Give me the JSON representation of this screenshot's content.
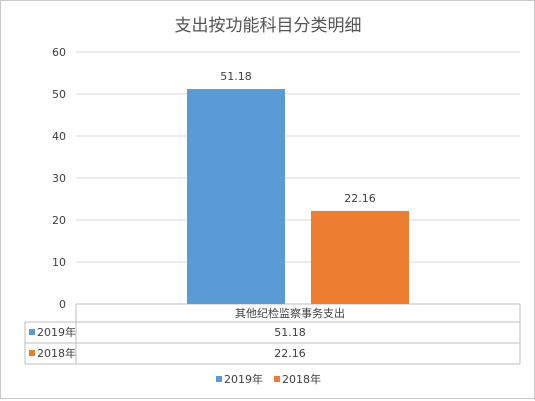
{
  "chart_data": {
    "type": "bar",
    "title": "支出按功能科目分类明细",
    "categories": [
      "其他纪检监察事务支出"
    ],
    "series": [
      {
        "name": "2019年",
        "values": [
          51.18
        ],
        "color": "#5b9bd5",
        "labels": [
          "51.18"
        ]
      },
      {
        "name": "2018年",
        "values": [
          22.16
        ],
        "color": "#ed7d31",
        "labels": [
          "22.16"
        ]
      }
    ],
    "ylim": [
      0,
      60
    ],
    "yticks": [
      "0",
      "10",
      "20",
      "30",
      "40",
      "50",
      "60"
    ],
    "grid": true,
    "legend": "bottom",
    "data_table": true,
    "gridline_color": "#d9d9d9",
    "axis_color": "#bfbfbf"
  }
}
